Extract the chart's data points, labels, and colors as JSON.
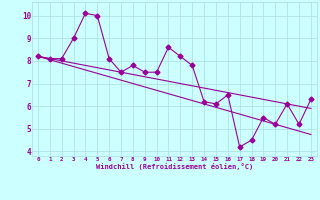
{
  "xlabel": "Windchill (Refroidissement éolien,°C)",
  "x_data": [
    0,
    1,
    2,
    3,
    4,
    5,
    6,
    7,
    8,
    9,
    10,
    11,
    12,
    13,
    14,
    15,
    16,
    17,
    18,
    19,
    20,
    21,
    22,
    23
  ],
  "y_main": [
    8.2,
    8.1,
    8.1,
    9.0,
    10.1,
    10.0,
    8.1,
    7.5,
    7.8,
    7.5,
    7.5,
    8.6,
    8.2,
    7.8,
    6.2,
    6.1,
    6.5,
    4.2,
    4.5,
    5.5,
    5.2,
    6.1,
    5.2,
    6.3
  ],
  "y_trend1": [
    8.2,
    8.05,
    7.9,
    7.75,
    7.6,
    7.45,
    7.3,
    7.15,
    7.0,
    6.85,
    6.7,
    6.55,
    6.4,
    6.25,
    6.1,
    5.95,
    5.8,
    5.65,
    5.5,
    5.35,
    5.2,
    5.05,
    4.9,
    4.75
  ],
  "y_trend2": [
    8.2,
    8.1,
    8.0,
    7.9,
    7.8,
    7.7,
    7.6,
    7.5,
    7.4,
    7.3,
    7.2,
    7.1,
    7.0,
    6.9,
    6.8,
    6.7,
    6.6,
    6.5,
    6.4,
    6.3,
    6.2,
    6.1,
    6.0,
    5.9
  ],
  "line_color": "#990099",
  "bg_color": "#ccffff",
  "grid_color": "#aadddd",
  "ylim": [
    3.8,
    10.6
  ],
  "yticks": [
    4,
    5,
    6,
    7,
    8,
    9,
    10
  ],
  "marker": "D",
  "markersize": 2.5,
  "linewidth": 0.8
}
